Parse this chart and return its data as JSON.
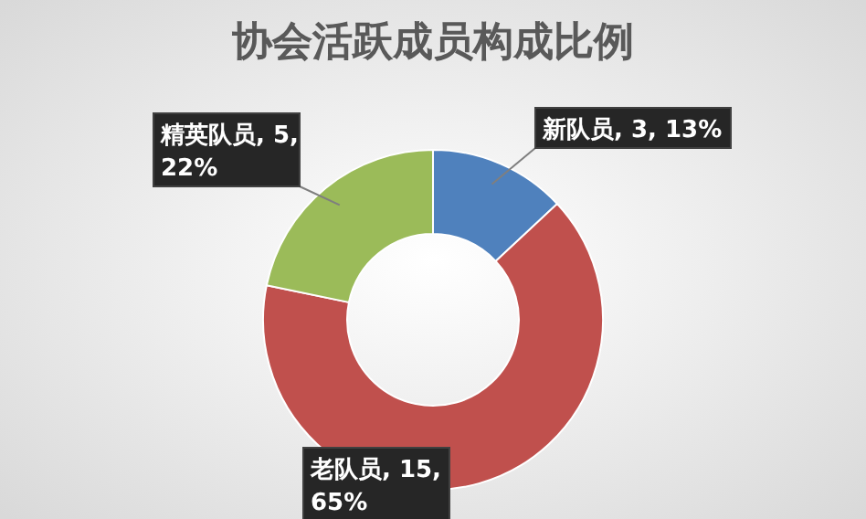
{
  "chart_data": {
    "type": "donut",
    "title": "协会活跃成员构成比例",
    "categories": [
      "新队员",
      "老队员",
      "精英队员"
    ],
    "values": [
      3,
      15,
      5
    ],
    "value_labels": [
      "3, 13%",
      "15, 65%",
      "5, 22%"
    ],
    "colors": [
      "#4f81bd",
      "#c0504d",
      "#9bbb59"
    ]
  }
}
